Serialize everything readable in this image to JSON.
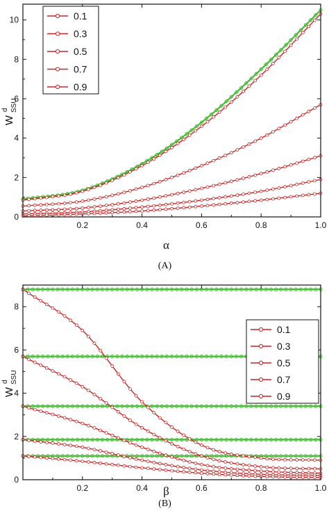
{
  "chart_data": [
    {
      "type": "line",
      "panel_label": "(A)",
      "xlabel": "α",
      "ylabel_main": "W",
      "ylabel_sup": "d",
      "ylabel_sub": "SSU",
      "xlim": [
        0.0,
        1.0
      ],
      "ylim": [
        0,
        10.8
      ],
      "xticks": [
        "0.2",
        "0.4",
        "0.6",
        "0.8",
        "1.0"
      ],
      "xtick_values": [
        0.2,
        0.4,
        0.6,
        0.8,
        1.0
      ],
      "yticks": [
        "0",
        "2",
        "4",
        "6",
        "8",
        "10"
      ],
      "ytick_values": [
        0,
        2,
        4,
        6,
        8,
        10
      ],
      "legend_position": "top-left",
      "legend_entries": [
        "0.1",
        "0.3",
        "0.5",
        "0.7",
        "0.9"
      ],
      "series_color": "#cc2222",
      "reference_color": "#44bb33",
      "series": [
        {
          "name": "0.1",
          "x": [
            0.0,
            0.2,
            0.4,
            0.6,
            0.8,
            1.0
          ],
          "values": [
            0.85,
            1.3,
            2.6,
            4.6,
            7.2,
            10.3
          ]
        },
        {
          "name": "0.3",
          "x": [
            0.0,
            0.2,
            0.4,
            0.6,
            0.8,
            1.0
          ],
          "values": [
            0.55,
            0.8,
            1.5,
            2.6,
            4.0,
            5.7
          ]
        },
        {
          "name": "0.5",
          "x": [
            0.0,
            0.2,
            0.4,
            0.6,
            0.8,
            1.0
          ],
          "values": [
            0.3,
            0.45,
            0.85,
            1.45,
            2.2,
            3.1
          ]
        },
        {
          "name": "0.7",
          "x": [
            0.0,
            0.2,
            0.4,
            0.6,
            0.8,
            1.0
          ],
          "values": [
            0.15,
            0.25,
            0.5,
            0.85,
            1.3,
            1.9
          ]
        },
        {
          "name": "0.9",
          "x": [
            0.0,
            0.2,
            0.4,
            0.6,
            0.8,
            1.0
          ],
          "values": [
            0.05,
            0.15,
            0.3,
            0.55,
            0.85,
            1.2
          ]
        }
      ],
      "reference_series": [
        {
          "x": [
            0.0,
            0.2,
            0.4,
            0.6,
            0.8,
            1.0
          ],
          "values": [
            0.9,
            1.35,
            2.7,
            4.8,
            7.5,
            10.5
          ]
        }
      ]
    },
    {
      "type": "line",
      "panel_label": "(B)",
      "xlabel": "β",
      "ylabel_main": "W",
      "ylabel_sup": "d",
      "ylabel_sub": "SSU",
      "xlim": [
        0.0,
        1.0
      ],
      "ylim": [
        0,
        9.0
      ],
      "xticks": [
        "0.2",
        "0.4",
        "0.6",
        "0.8",
        "1.0"
      ],
      "xtick_values": [
        0.2,
        0.4,
        0.6,
        0.8,
        1.0
      ],
      "yticks": [
        "0",
        "2",
        "4",
        "6",
        "8"
      ],
      "ytick_values": [
        0,
        2,
        4,
        6,
        8
      ],
      "legend_position": "top-right",
      "legend_entries": [
        "0.1",
        "0.3",
        "0.5",
        "0.7",
        "0.9"
      ],
      "series_color": "#cc2222",
      "reference_color": "#44bb33",
      "series": [
        {
          "name": "0.1",
          "x": [
            0.0,
            0.2,
            0.4,
            0.6,
            0.8,
            1.0
          ],
          "values": [
            8.8,
            6.9,
            3.6,
            1.6,
            1.0,
            0.9
          ]
        },
        {
          "name": "0.3",
          "x": [
            0.0,
            0.2,
            0.4,
            0.6,
            0.8,
            1.0
          ],
          "values": [
            5.7,
            4.3,
            2.4,
            1.1,
            0.6,
            0.5
          ]
        },
        {
          "name": "0.5",
          "x": [
            0.0,
            0.2,
            0.4,
            0.6,
            0.8,
            1.0
          ],
          "values": [
            3.4,
            2.6,
            1.5,
            0.7,
            0.4,
            0.3
          ]
        },
        {
          "name": "0.7",
          "x": [
            0.0,
            0.2,
            0.4,
            0.6,
            0.8,
            1.0
          ],
          "values": [
            1.85,
            1.5,
            0.9,
            0.45,
            0.25,
            0.2
          ]
        },
        {
          "name": "0.9",
          "x": [
            0.0,
            0.2,
            0.4,
            0.6,
            0.8,
            1.0
          ],
          "values": [
            1.1,
            0.85,
            0.55,
            0.3,
            0.15,
            0.1
          ]
        }
      ],
      "reference_series": [
        {
          "x": [
            0.0,
            1.0
          ],
          "values": [
            8.8,
            8.8
          ]
        },
        {
          "x": [
            0.0,
            1.0
          ],
          "values": [
            5.7,
            5.7
          ]
        },
        {
          "x": [
            0.0,
            1.0
          ],
          "values": [
            3.4,
            3.4
          ]
        },
        {
          "x": [
            0.0,
            1.0
          ],
          "values": [
            1.85,
            1.85
          ]
        },
        {
          "x": [
            0.0,
            1.0
          ],
          "values": [
            1.1,
            1.1
          ]
        }
      ]
    }
  ]
}
